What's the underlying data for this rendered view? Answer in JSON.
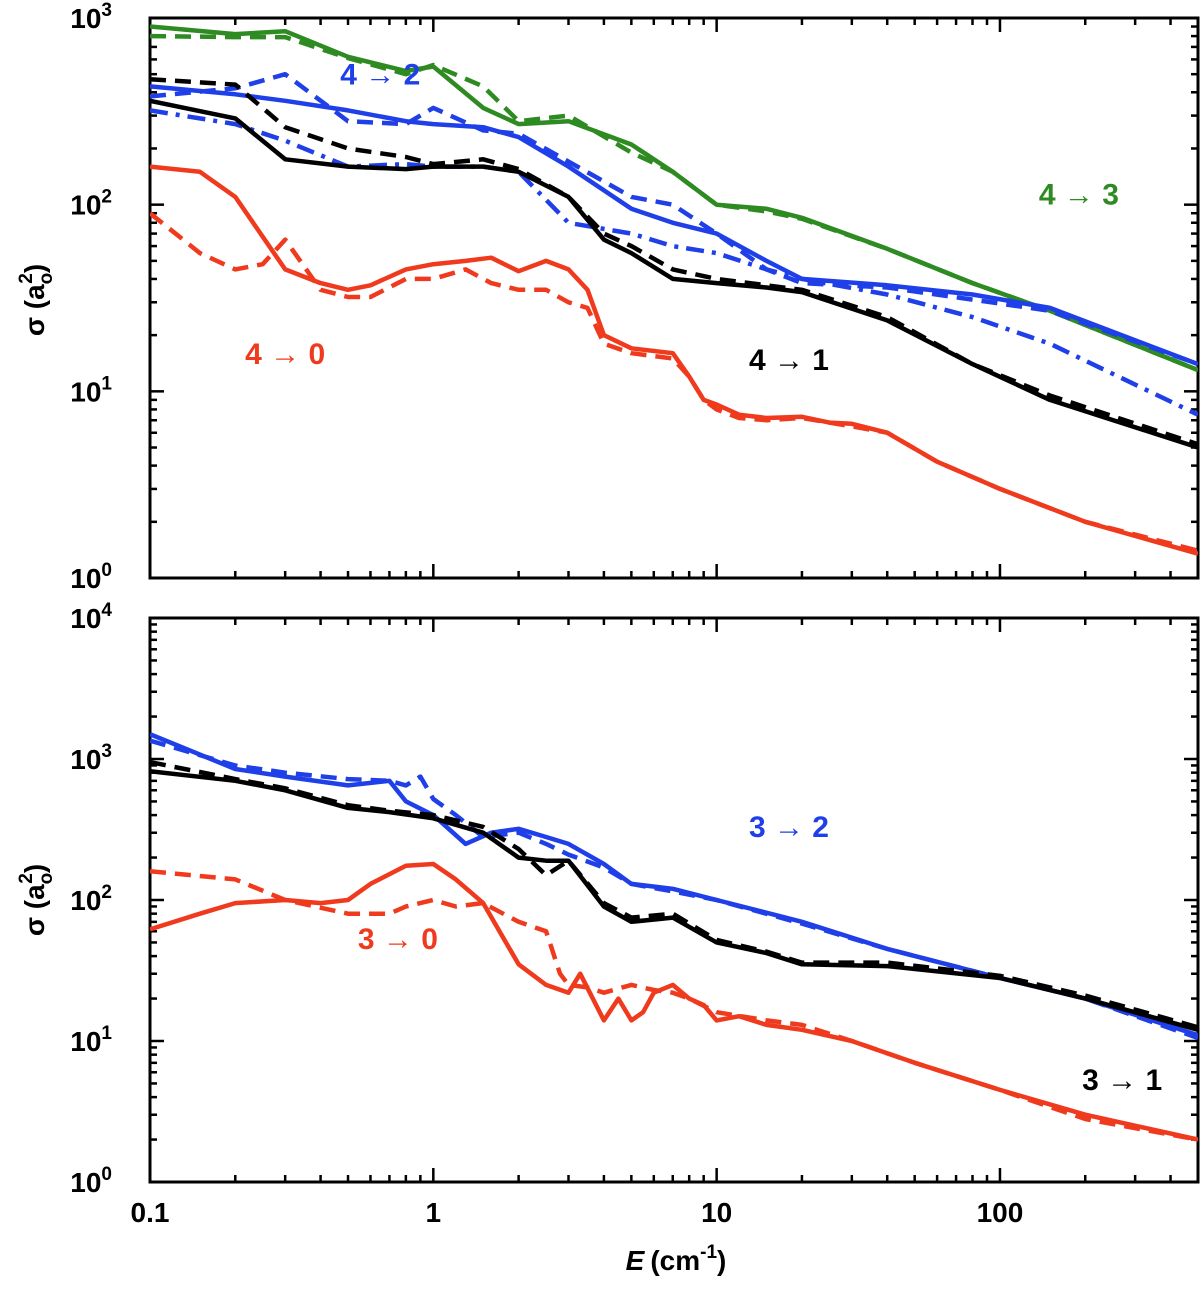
{
  "chart_data": [
    {
      "type": "line",
      "panel": "top",
      "x_scale": "log",
      "y_scale": "log",
      "xlim": [
        0.1,
        500
      ],
      "ylim": [
        1,
        1000
      ],
      "xlabel": "E",
      "xlabel_unit": "(cm",
      "xlabel_unit_exp": "-1",
      "xlabel_unit_close": ")",
      "ylabel_sigma": "σ",
      "ylabel_unit_open": " (a",
      "ylabel_unit_sub": "o",
      "ylabel_unit_sup": "2",
      "ylabel_unit_close": ")",
      "y_ticks": [
        {
          "base": "10",
          "exp": "0",
          "value": 1
        },
        {
          "base": "10",
          "exp": "1",
          "value": 10
        },
        {
          "base": "10",
          "exp": "2",
          "value": 100
        },
        {
          "base": "10",
          "exp": "3",
          "value": 1000
        }
      ],
      "annotations": [
        {
          "text": "4 → 3",
          "color": "#2e8b22",
          "x": 190,
          "y": 100
        },
        {
          "text": "4 → 2",
          "color": "#1f3fe8",
          "x": 0.65,
          "y": 440
        },
        {
          "text": "4 → 0",
          "color": "#f03a1e",
          "x": 0.3,
          "y": 14
        },
        {
          "text": "4 → 1",
          "color": "#000000",
          "x": 18,
          "y": 13
        }
      ],
      "series": [
        {
          "name": "4 → 3",
          "color": "#2e8b22",
          "style": "solid",
          "x": [
            0.1,
            0.2,
            0.3,
            0.5,
            0.8,
            1.0,
            1.5,
            2.0,
            3.0,
            5.0,
            7.0,
            10,
            15,
            20,
            40,
            80,
            150,
            500
          ],
          "y": [
            900,
            820,
            850,
            620,
            520,
            550,
            330,
            270,
            280,
            210,
            150,
            100,
            95,
            85,
            58,
            38,
            27,
            13
          ]
        },
        {
          "name": "4 → 3 (dashed)",
          "color": "#2e8b22",
          "style": "dashed",
          "x": [
            0.1,
            0.2,
            0.3,
            0.5,
            0.8,
            1.0,
            1.5,
            2.0,
            3.0,
            5.0,
            7.0,
            10,
            15,
            20,
            40,
            80,
            150,
            500
          ],
          "y": [
            800,
            790,
            790,
            610,
            500,
            560,
            430,
            280,
            300,
            190,
            150,
            100,
            92,
            84,
            58,
            38,
            27,
            13
          ]
        },
        {
          "name": "4 → 2",
          "color": "#1f3fe8",
          "style": "solid",
          "x": [
            0.1,
            0.2,
            0.3,
            0.5,
            0.8,
            1.0,
            1.5,
            2.0,
            3.0,
            5.0,
            7.0,
            10,
            15,
            20,
            40,
            80,
            150,
            500
          ],
          "y": [
            430,
            390,
            360,
            320,
            280,
            270,
            260,
            230,
            160,
            95,
            80,
            70,
            50,
            40,
            37,
            33,
            28,
            14
          ]
        },
        {
          "name": "4 → 2 (dashed)",
          "color": "#1f3fe8",
          "style": "dashed",
          "x": [
            0.1,
            0.2,
            0.3,
            0.5,
            0.8,
            1.0,
            1.5,
            2.0,
            3.0,
            5.0,
            7.0,
            10,
            15,
            20,
            40,
            80,
            150,
            500
          ],
          "y": [
            380,
            420,
            500,
            280,
            270,
            330,
            250,
            240,
            170,
            110,
            100,
            70,
            45,
            38,
            36,
            31,
            27,
            14
          ]
        },
        {
          "name": "4 → 2 (dash-dot)",
          "color": "#1f3fe8",
          "style": "dashdot",
          "x": [
            0.1,
            0.2,
            0.3,
            0.5,
            0.8,
            1.0,
            1.5,
            2.0,
            3.0,
            5.0,
            7.0,
            10,
            15,
            20,
            40,
            80,
            150,
            500
          ],
          "y": [
            320,
            270,
            220,
            160,
            165,
            160,
            160,
            150,
            80,
            70,
            60,
            55,
            45,
            40,
            33,
            25,
            18,
            7.5
          ]
        },
        {
          "name": "4 → 1",
          "color": "#000000",
          "style": "solid",
          "x": [
            0.1,
            0.2,
            0.3,
            0.5,
            0.8,
            1.0,
            1.5,
            2.0,
            3.0,
            4.0,
            5.0,
            7.0,
            10,
            15,
            20,
            40,
            80,
            150,
            500
          ],
          "y": [
            360,
            290,
            175,
            160,
            155,
            160,
            160,
            150,
            110,
            65,
            55,
            40,
            38,
            36,
            34,
            24,
            14,
            9,
            5
          ]
        },
        {
          "name": "4 → 1 (dashed)",
          "color": "#000000",
          "style": "dashed",
          "x": [
            0.1,
            0.2,
            0.3,
            0.5,
            0.8,
            1.0,
            1.5,
            2.0,
            3.0,
            4.0,
            5.0,
            7.0,
            10,
            15,
            20,
            40,
            80,
            150,
            500
          ],
          "y": [
            470,
            440,
            260,
            200,
            180,
            165,
            175,
            155,
            110,
            70,
            60,
            45,
            40,
            37,
            35,
            25,
            14,
            9.5,
            5.2
          ]
        },
        {
          "name": "4 → 0",
          "color": "#f03a1e",
          "style": "solid",
          "x": [
            0.1,
            0.15,
            0.2,
            0.3,
            0.4,
            0.5,
            0.6,
            0.8,
            1.0,
            1.3,
            1.6,
            2.0,
            2.5,
            3.0,
            3.5,
            4.0,
            5.0,
            7.0,
            8.0,
            9.0,
            10,
            12,
            15,
            20,
            25,
            30,
            40,
            60,
            100,
            200,
            500
          ],
          "y": [
            160,
            150,
            110,
            45,
            38,
            35,
            37,
            45,
            48,
            50,
            52,
            44,
            50,
            45,
            35,
            20,
            17,
            16,
            12,
            9,
            8.5,
            7.5,
            7.2,
            7.3,
            6.8,
            6.7,
            6.0,
            4.2,
            3.0,
            2.0,
            1.35
          ]
        },
        {
          "name": "4 → 0 (dashed)",
          "color": "#f03a1e",
          "style": "dashed",
          "x": [
            0.1,
            0.15,
            0.2,
            0.25,
            0.3,
            0.4,
            0.5,
            0.6,
            0.8,
            1.0,
            1.3,
            1.6,
            2.0,
            2.5,
            3.0,
            3.5,
            4.0,
            5.0,
            7.0,
            8.0,
            9.0,
            10,
            12,
            15,
            20,
            25,
            30,
            40,
            60,
            100,
            200,
            500
          ],
          "y": [
            90,
            55,
            45,
            48,
            65,
            35,
            32,
            32,
            40,
            40,
            45,
            38,
            35,
            35,
            30,
            28,
            18,
            16,
            15,
            12,
            9,
            8,
            7.2,
            7.0,
            7.2,
            6.8,
            6.5,
            6.0,
            4.2,
            3.0,
            2.0,
            1.4
          ]
        }
      ]
    },
    {
      "type": "line",
      "panel": "bottom",
      "x_scale": "log",
      "y_scale": "log",
      "xlim": [
        0.1,
        500
      ],
      "ylim": [
        1,
        10000
      ],
      "x_ticks": [
        "0.1",
        "1",
        "10",
        "100"
      ],
      "y_ticks": [
        {
          "base": "10",
          "exp": "0",
          "value": 1
        },
        {
          "base": "10",
          "exp": "1",
          "value": 10
        },
        {
          "base": "10",
          "exp": "2",
          "value": 100
        },
        {
          "base": "10",
          "exp": "3",
          "value": 1000
        },
        {
          "base": "10",
          "exp": "4",
          "value": 10000
        }
      ],
      "annotations": [
        {
          "text": "3 → 2",
          "color": "#1f3fe8",
          "x": 18,
          "y": 280
        },
        {
          "text": "3 → 0",
          "color": "#f03a1e",
          "x": 0.75,
          "y": 45
        },
        {
          "text": "3 → 1",
          "color": "#000000",
          "x": 270,
          "y": 4.5
        }
      ],
      "series": [
        {
          "name": "3 → 2",
          "color": "#1f3fe8",
          "style": "solid",
          "x": [
            0.1,
            0.2,
            0.3,
            0.5,
            0.7,
            0.8,
            1.0,
            1.3,
            1.6,
            2.0,
            2.5,
            3.0,
            4.0,
            5.0,
            7.0,
            10,
            20,
            40,
            100,
            200,
            500
          ],
          "y": [
            1500,
            850,
            750,
            650,
            700,
            500,
            400,
            250,
            300,
            320,
            280,
            250,
            180,
            130,
            120,
            100,
            70,
            45,
            28,
            20,
            11
          ]
        },
        {
          "name": "3 → 2 (dashed)",
          "color": "#1f3fe8",
          "style": "dashed",
          "x": [
            0.1,
            0.2,
            0.3,
            0.5,
            0.7,
            0.8,
            0.9,
            1.0,
            1.2,
            1.5,
            2.0,
            2.5,
            3.0,
            4.0,
            5.0,
            7.0,
            10,
            20,
            40,
            100,
            200,
            500
          ],
          "y": [
            1350,
            900,
            800,
            720,
            700,
            650,
            750,
            520,
            400,
            280,
            300,
            250,
            210,
            170,
            130,
            115,
            100,
            68,
            45,
            28,
            20,
            10.5
          ]
        },
        {
          "name": "3 → 1",
          "color": "#000000",
          "style": "solid",
          "x": [
            0.1,
            0.2,
            0.3,
            0.5,
            0.7,
            1.0,
            1.5,
            2.0,
            2.5,
            3.0,
            4.0,
            5.0,
            7.0,
            10,
            15,
            20,
            40,
            100,
            200,
            500
          ],
          "y": [
            820,
            700,
            600,
            450,
            420,
            380,
            300,
            200,
            190,
            190,
            90,
            70,
            75,
            50,
            42,
            35,
            34,
            28,
            20,
            12
          ]
        },
        {
          "name": "3 → 1 (dashed)",
          "color": "#000000",
          "style": "dashed",
          "x": [
            0.1,
            0.2,
            0.3,
            0.5,
            0.7,
            1.0,
            1.5,
            2.0,
            2.5,
            3.0,
            4.0,
            5.0,
            7.0,
            10,
            15,
            20,
            40,
            100,
            200,
            500
          ],
          "y": [
            950,
            720,
            620,
            470,
            430,
            400,
            330,
            230,
            150,
            190,
            95,
            75,
            80,
            52,
            43,
            36,
            36,
            29,
            21,
            12.5
          ]
        },
        {
          "name": "3 → 0",
          "color": "#f03a1e",
          "style": "solid",
          "x": [
            0.1,
            0.15,
            0.2,
            0.3,
            0.4,
            0.5,
            0.6,
            0.8,
            1.0,
            1.2,
            1.5,
            2.0,
            2.5,
            3.0,
            3.3,
            4.0,
            4.5,
            5.0,
            5.5,
            6.0,
            7.0,
            8.0,
            9.0,
            10,
            12,
            15,
            20,
            30,
            50,
            100,
            200,
            500
          ],
          "y": [
            62,
            80,
            95,
            100,
            95,
            100,
            130,
            175,
            180,
            140,
            95,
            35,
            25,
            22,
            30,
            14,
            20,
            14,
            16,
            22,
            25,
            20,
            18,
            14,
            15,
            13,
            12,
            10,
            7,
            4.5,
            3,
            2
          ]
        },
        {
          "name": "3 → 0 (dashed)",
          "color": "#f03a1e",
          "style": "dashed",
          "x": [
            0.1,
            0.2,
            0.3,
            0.5,
            0.7,
            0.8,
            1.0,
            1.2,
            1.5,
            2.0,
            2.5,
            2.8,
            3.0,
            3.5,
            4.0,
            5.0,
            6.0,
            7.0,
            8.0,
            10,
            15,
            20,
            30,
            50,
            100,
            200,
            500
          ],
          "y": [
            160,
            140,
            100,
            80,
            80,
            90,
            100,
            90,
            95,
            70,
            60,
            30,
            25,
            24,
            22,
            25,
            23,
            22,
            20,
            16,
            14,
            13,
            10,
            7,
            4.5,
            2.8,
            2
          ]
        }
      ]
    }
  ]
}
